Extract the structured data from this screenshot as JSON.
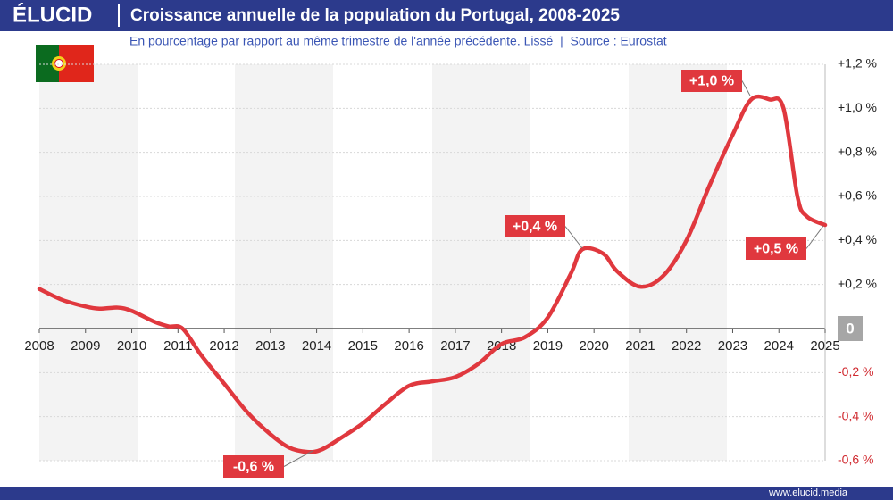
{
  "header": {
    "logo": "ÉLUCID"
  },
  "footer": {
    "url": "www.elucid.media"
  },
  "chart_data": {
    "type": "line",
    "title": "Croissance annuelle de la population du Portugal, 2008-2025",
    "subtitle": "En pourcentage par rapport au même trimestre de l'année précédente. Lissé  |  Source : Eurostat",
    "x": [
      2008,
      2008.5,
      2009,
      2009.3,
      2009.7,
      2010,
      2010.5,
      2010.8,
      2011.1,
      2011.5,
      2012,
      2012.5,
      2013,
      2013.4,
      2013.8,
      2014.1,
      2014.5,
      2015,
      2015.5,
      2016,
      2016.5,
      2017,
      2017.5,
      2018,
      2018.5,
      2019,
      2019.5,
      2019.75,
      2020.2,
      2020.5,
      2021,
      2021.5,
      2022,
      2022.5,
      2023,
      2023.4,
      2023.8,
      2024.1,
      2024.4,
      2024.6,
      2025
    ],
    "values": [
      0.18,
      0.13,
      0.1,
      0.09,
      0.095,
      0.08,
      0.03,
      0.01,
      0.0,
      -0.12,
      -0.25,
      -0.38,
      -0.48,
      -0.54,
      -0.56,
      -0.55,
      -0.5,
      -0.43,
      -0.34,
      -0.26,
      -0.24,
      -0.22,
      -0.16,
      -0.07,
      -0.04,
      0.05,
      0.25,
      0.36,
      0.34,
      0.26,
      0.19,
      0.24,
      0.4,
      0.65,
      0.88,
      1.04,
      1.04,
      1.0,
      0.6,
      0.51,
      0.47
    ],
    "color": "#e0383e",
    "xlim": [
      2008,
      2025
    ],
    "xticks": [
      2008,
      2009,
      2010,
      2011,
      2012,
      2013,
      2014,
      2015,
      2016,
      2017,
      2018,
      2019,
      2020,
      2021,
      2022,
      2023,
      2024,
      2025
    ],
    "ylim": [
      -0.6,
      1.2
    ],
    "yticks": [
      {
        "value": -0.6,
        "label": "-0,6 %"
      },
      {
        "value": -0.4,
        "label": "-0,4 %"
      },
      {
        "value": -0.2,
        "label": "-0,2 %"
      },
      0,
      {
        "value": 0.2,
        "label": "+0,2 %"
      },
      {
        "value": 0.4,
        "label": "+0,4 %"
      },
      {
        "value": 0.6,
        "label": "+0,6 %"
      },
      {
        "value": 0.8,
        "label": "+0,8 %"
      },
      {
        "value": 1.0,
        "label": "+1,0 %"
      },
      {
        "value": 1.2,
        "label": "+1,2 %"
      }
    ],
    "grid": true,
    "annotations": [
      "+1,0 %",
      "+0,4 %",
      "-0,6 %",
      "+0,5 %"
    ]
  }
}
